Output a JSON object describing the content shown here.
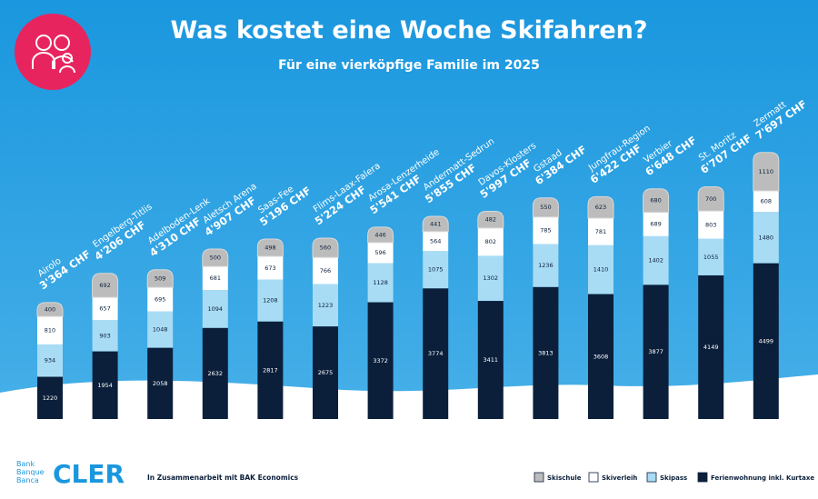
{
  "chart_data": {
    "type": "stacked_bar",
    "title": "Was kostet eine Woche Skifahren?",
    "subtitle": "Für eine vierköpfige Familie im 2025",
    "categories": [
      "Airolo",
      "Engelberg-Titlis",
      "Adelboden-Lenk",
      "Aletsch Arena",
      "Saas-Fee",
      "Flims-Laax-Falera",
      "Arosa-Lenzerheide",
      "Andermatt-Sedrun",
      "Davos-Klosters",
      "Gstaad",
      "Jungfrau-Region",
      "Verbier",
      "St. Moritz",
      "Zermatt"
    ],
    "series": [
      {
        "name": "Skischule",
        "color": "#bcbcbc",
        "values": [
          400,
          692,
          509,
          500,
          498,
          560,
          446,
          441,
          482,
          550,
          623,
          680,
          700,
          1110
        ]
      },
      {
        "name": "Skiverleih",
        "color": "#ffffff",
        "values": [
          810,
          657,
          695,
          681,
          673,
          766,
          596,
          564,
          802,
          785,
          781,
          689,
          803,
          608
        ]
      },
      {
        "name": "Skipass",
        "color": "#a8dcf4",
        "values": [
          934,
          903,
          1048,
          1094,
          1208,
          1223,
          1128,
          1075,
          1302,
          1236,
          1410,
          1402,
          1055,
          1480
        ]
      },
      {
        "name": "Ferienwohnung inkl. Kurtaxe",
        "color": "#0b1f3b",
        "values": [
          1220,
          1954,
          2058,
          2632,
          2817,
          2675,
          3372,
          3774,
          3411,
          3813,
          3608,
          3877,
          4149,
          4499
        ]
      }
    ],
    "totals": {
      "values": [
        3364,
        4206,
        4310,
        4907,
        5196,
        5224,
        5541,
        5855,
        5997,
        6384,
        6422,
        6648,
        6707,
        7697
      ],
      "value_labels": [
        "3'364 CHF",
        "4'206 CHF",
        "4'310 CHF",
        "4'907 CHF",
        "5'196 CHF",
        "5'224 CHF",
        "5'541 CHF",
        "5'855 CHF",
        "5'997 CHF",
        "6'384 CHF",
        "6'422 CHF",
        "6'648 CHF",
        "6'707 CHF",
        "7'697 CHF"
      ]
    }
  },
  "brand": {
    "lines": [
      "Bank",
      "Banque",
      "Banca"
    ],
    "name": "CLER"
  },
  "credit": "In Zusammenarbeit mit BAK Economics"
}
